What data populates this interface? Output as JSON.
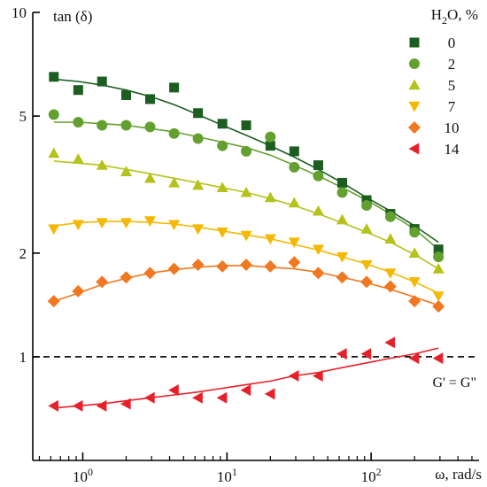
{
  "chart_data": {
    "type": "scatter",
    "title": "",
    "xlabel": "ω, rad/s",
    "ylabel": "tan (δ)",
    "x_scale": "log",
    "y_scale": "log",
    "xlim": [
      0.45,
      560
    ],
    "ylim": [
      0.5,
      10
    ],
    "grid": false,
    "legend_placement": "top-right",
    "legend_title": {
      "prefix": "H",
      "sub": "2",
      "suffix": "O, %"
    },
    "y_ticks": [
      {
        "value": 1,
        "label": "1"
      },
      {
        "value": 2,
        "label": "2"
      },
      {
        "value": 5,
        "label": "5"
      },
      {
        "value": 10,
        "label": "10"
      }
    ],
    "x_ticks": [
      {
        "value": 1,
        "base": "10",
        "exp": "0"
      },
      {
        "value": 10,
        "base": "10",
        "exp": "1"
      },
      {
        "value": 100,
        "base": "10",
        "exp": "2"
      }
    ],
    "x_minor_ticks": [
      0.5,
      0.6,
      0.7,
      0.8,
      0.9,
      2,
      3,
      4,
      5,
      6,
      7,
      8,
      9,
      20,
      30,
      40,
      50,
      60,
      70,
      80,
      90,
      200,
      300,
      400,
      500
    ],
    "reference_line": {
      "y": 1,
      "label": "G' = G\"",
      "color": "#000000"
    },
    "x": [
      0.63,
      0.93,
      1.36,
      2.0,
      2.93,
      4.3,
      6.3,
      9.3,
      13.6,
      20.0,
      29.3,
      43.0,
      63.0,
      93.0,
      136.0,
      200.0,
      293.0
    ],
    "series": [
      {
        "name": "0",
        "marker": "square",
        "color": "#1b5e20",
        "values": [
          6.5,
          5.95,
          6.3,
          5.75,
          5.6,
          6.05,
          5.1,
          4.75,
          4.7,
          4.1,
          3.95,
          3.6,
          3.2,
          2.85,
          2.6,
          2.35,
          2.05
        ],
        "fit": [
          6.4,
          6.3,
          6.15,
          5.95,
          5.7,
          5.4,
          5.05,
          4.7,
          4.4,
          4.1,
          3.8,
          3.5,
          3.2,
          2.9,
          2.65,
          2.4,
          2.15
        ]
      },
      {
        "name": "2",
        "marker": "circle",
        "color": "#64a030",
        "values": [
          5.05,
          4.8,
          4.7,
          4.7,
          4.65,
          4.45,
          4.3,
          4.1,
          3.95,
          4.35,
          3.55,
          3.35,
          3.0,
          2.75,
          2.55,
          2.3,
          1.95
        ],
        "fit": [
          4.8,
          4.8,
          4.75,
          4.7,
          4.6,
          4.5,
          4.35,
          4.2,
          4.05,
          3.85,
          3.6,
          3.35,
          3.1,
          2.85,
          2.6,
          2.35,
          2.05
        ]
      },
      {
        "name": "5",
        "marker": "triangle-up",
        "color": "#b5c21a",
        "values": [
          3.9,
          3.75,
          3.6,
          3.45,
          3.3,
          3.2,
          3.15,
          3.1,
          3.0,
          2.9,
          2.8,
          2.65,
          2.5,
          2.35,
          2.2,
          2.0,
          1.8
        ],
        "fit": [
          3.7,
          3.65,
          3.6,
          3.5,
          3.4,
          3.3,
          3.2,
          3.1,
          3.0,
          2.88,
          2.75,
          2.6,
          2.45,
          2.3,
          2.15,
          1.98,
          1.8
        ]
      },
      {
        "name": "7",
        "marker": "triangle-down",
        "color": "#f5b800",
        "values": [
          2.35,
          2.42,
          2.45,
          2.45,
          2.48,
          2.42,
          2.35,
          2.3,
          2.25,
          2.2,
          2.15,
          2.05,
          1.95,
          1.85,
          1.75,
          1.65,
          1.5
        ],
        "fit": [
          2.4,
          2.45,
          2.47,
          2.47,
          2.46,
          2.43,
          2.38,
          2.32,
          2.26,
          2.2,
          2.12,
          2.04,
          1.95,
          1.86,
          1.76,
          1.65,
          1.53
        ]
      },
      {
        "name": "10",
        "marker": "diamond",
        "color": "#f07820",
        "values": [
          1.45,
          1.55,
          1.65,
          1.7,
          1.75,
          1.8,
          1.85,
          1.83,
          1.85,
          1.83,
          1.88,
          1.75,
          1.7,
          1.65,
          1.6,
          1.45,
          1.4
        ],
        "fit": [
          1.45,
          1.53,
          1.62,
          1.69,
          1.75,
          1.79,
          1.82,
          1.84,
          1.84,
          1.82,
          1.8,
          1.76,
          1.7,
          1.64,
          1.57,
          1.49,
          1.41
        ]
      },
      {
        "name": "14",
        "marker": "triangle-left",
        "color": "#e8202a",
        "values": [
          0.72,
          0.72,
          0.72,
          0.73,
          0.76,
          0.8,
          0.76,
          0.76,
          0.8,
          0.78,
          0.88,
          0.88,
          1.02,
          1.02,
          1.1,
          0.99,
          0.99
        ],
        "fit": [
          0.71,
          0.72,
          0.73,
          0.745,
          0.76,
          0.775,
          0.79,
          0.81,
          0.83,
          0.85,
          0.88,
          0.9,
          0.93,
          0.96,
          0.99,
          1.02,
          1.06
        ]
      }
    ]
  }
}
